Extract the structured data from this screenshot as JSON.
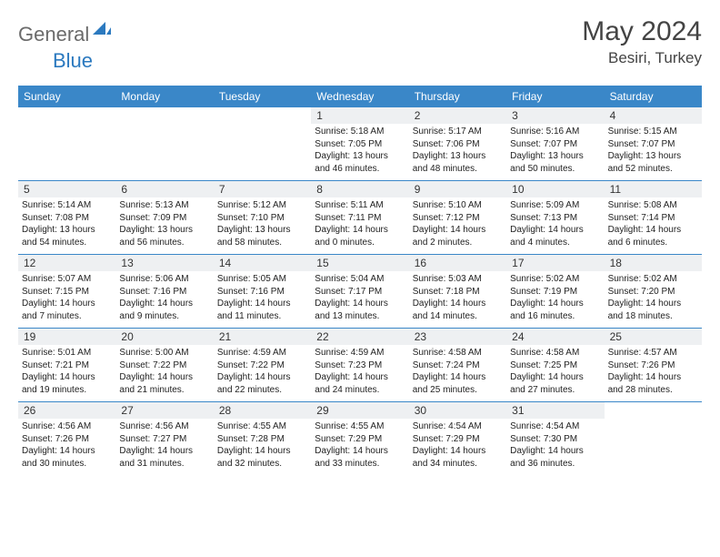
{
  "brand": {
    "general": "General",
    "blue": "Blue"
  },
  "title": {
    "month": "May 2024",
    "location": "Besiri, Turkey"
  },
  "colors": {
    "header_bg": "#3a87c8",
    "daynum_bg": "#eef0f2",
    "border": "#3a87c8",
    "logo_gray": "#6b6b6b",
    "logo_blue": "#2b79bf"
  },
  "days": [
    "Sunday",
    "Monday",
    "Tuesday",
    "Wednesday",
    "Thursday",
    "Friday",
    "Saturday"
  ],
  "weeks": [
    [
      {
        "n": "",
        "sr": "",
        "ss": "",
        "dl": ""
      },
      {
        "n": "",
        "sr": "",
        "ss": "",
        "dl": ""
      },
      {
        "n": "",
        "sr": "",
        "ss": "",
        "dl": ""
      },
      {
        "n": "1",
        "sr": "Sunrise: 5:18 AM",
        "ss": "Sunset: 7:05 PM",
        "dl": "Daylight: 13 hours and 46 minutes."
      },
      {
        "n": "2",
        "sr": "Sunrise: 5:17 AM",
        "ss": "Sunset: 7:06 PM",
        "dl": "Daylight: 13 hours and 48 minutes."
      },
      {
        "n": "3",
        "sr": "Sunrise: 5:16 AM",
        "ss": "Sunset: 7:07 PM",
        "dl": "Daylight: 13 hours and 50 minutes."
      },
      {
        "n": "4",
        "sr": "Sunrise: 5:15 AM",
        "ss": "Sunset: 7:07 PM",
        "dl": "Daylight: 13 hours and 52 minutes."
      }
    ],
    [
      {
        "n": "5",
        "sr": "Sunrise: 5:14 AM",
        "ss": "Sunset: 7:08 PM",
        "dl": "Daylight: 13 hours and 54 minutes."
      },
      {
        "n": "6",
        "sr": "Sunrise: 5:13 AM",
        "ss": "Sunset: 7:09 PM",
        "dl": "Daylight: 13 hours and 56 minutes."
      },
      {
        "n": "7",
        "sr": "Sunrise: 5:12 AM",
        "ss": "Sunset: 7:10 PM",
        "dl": "Daylight: 13 hours and 58 minutes."
      },
      {
        "n": "8",
        "sr": "Sunrise: 5:11 AM",
        "ss": "Sunset: 7:11 PM",
        "dl": "Daylight: 14 hours and 0 minutes."
      },
      {
        "n": "9",
        "sr": "Sunrise: 5:10 AM",
        "ss": "Sunset: 7:12 PM",
        "dl": "Daylight: 14 hours and 2 minutes."
      },
      {
        "n": "10",
        "sr": "Sunrise: 5:09 AM",
        "ss": "Sunset: 7:13 PM",
        "dl": "Daylight: 14 hours and 4 minutes."
      },
      {
        "n": "11",
        "sr": "Sunrise: 5:08 AM",
        "ss": "Sunset: 7:14 PM",
        "dl": "Daylight: 14 hours and 6 minutes."
      }
    ],
    [
      {
        "n": "12",
        "sr": "Sunrise: 5:07 AM",
        "ss": "Sunset: 7:15 PM",
        "dl": "Daylight: 14 hours and 7 minutes."
      },
      {
        "n": "13",
        "sr": "Sunrise: 5:06 AM",
        "ss": "Sunset: 7:16 PM",
        "dl": "Daylight: 14 hours and 9 minutes."
      },
      {
        "n": "14",
        "sr": "Sunrise: 5:05 AM",
        "ss": "Sunset: 7:16 PM",
        "dl": "Daylight: 14 hours and 11 minutes."
      },
      {
        "n": "15",
        "sr": "Sunrise: 5:04 AM",
        "ss": "Sunset: 7:17 PM",
        "dl": "Daylight: 14 hours and 13 minutes."
      },
      {
        "n": "16",
        "sr": "Sunrise: 5:03 AM",
        "ss": "Sunset: 7:18 PM",
        "dl": "Daylight: 14 hours and 14 minutes."
      },
      {
        "n": "17",
        "sr": "Sunrise: 5:02 AM",
        "ss": "Sunset: 7:19 PM",
        "dl": "Daylight: 14 hours and 16 minutes."
      },
      {
        "n": "18",
        "sr": "Sunrise: 5:02 AM",
        "ss": "Sunset: 7:20 PM",
        "dl": "Daylight: 14 hours and 18 minutes."
      }
    ],
    [
      {
        "n": "19",
        "sr": "Sunrise: 5:01 AM",
        "ss": "Sunset: 7:21 PM",
        "dl": "Daylight: 14 hours and 19 minutes."
      },
      {
        "n": "20",
        "sr": "Sunrise: 5:00 AM",
        "ss": "Sunset: 7:22 PM",
        "dl": "Daylight: 14 hours and 21 minutes."
      },
      {
        "n": "21",
        "sr": "Sunrise: 4:59 AM",
        "ss": "Sunset: 7:22 PM",
        "dl": "Daylight: 14 hours and 22 minutes."
      },
      {
        "n": "22",
        "sr": "Sunrise: 4:59 AM",
        "ss": "Sunset: 7:23 PM",
        "dl": "Daylight: 14 hours and 24 minutes."
      },
      {
        "n": "23",
        "sr": "Sunrise: 4:58 AM",
        "ss": "Sunset: 7:24 PM",
        "dl": "Daylight: 14 hours and 25 minutes."
      },
      {
        "n": "24",
        "sr": "Sunrise: 4:58 AM",
        "ss": "Sunset: 7:25 PM",
        "dl": "Daylight: 14 hours and 27 minutes."
      },
      {
        "n": "25",
        "sr": "Sunrise: 4:57 AM",
        "ss": "Sunset: 7:26 PM",
        "dl": "Daylight: 14 hours and 28 minutes."
      }
    ],
    [
      {
        "n": "26",
        "sr": "Sunrise: 4:56 AM",
        "ss": "Sunset: 7:26 PM",
        "dl": "Daylight: 14 hours and 30 minutes."
      },
      {
        "n": "27",
        "sr": "Sunrise: 4:56 AM",
        "ss": "Sunset: 7:27 PM",
        "dl": "Daylight: 14 hours and 31 minutes."
      },
      {
        "n": "28",
        "sr": "Sunrise: 4:55 AM",
        "ss": "Sunset: 7:28 PM",
        "dl": "Daylight: 14 hours and 32 minutes."
      },
      {
        "n": "29",
        "sr": "Sunrise: 4:55 AM",
        "ss": "Sunset: 7:29 PM",
        "dl": "Daylight: 14 hours and 33 minutes."
      },
      {
        "n": "30",
        "sr": "Sunrise: 4:54 AM",
        "ss": "Sunset: 7:29 PM",
        "dl": "Daylight: 14 hours and 34 minutes."
      },
      {
        "n": "31",
        "sr": "Sunrise: 4:54 AM",
        "ss": "Sunset: 7:30 PM",
        "dl": "Daylight: 14 hours and 36 minutes."
      },
      {
        "n": "",
        "sr": "",
        "ss": "",
        "dl": ""
      }
    ]
  ]
}
